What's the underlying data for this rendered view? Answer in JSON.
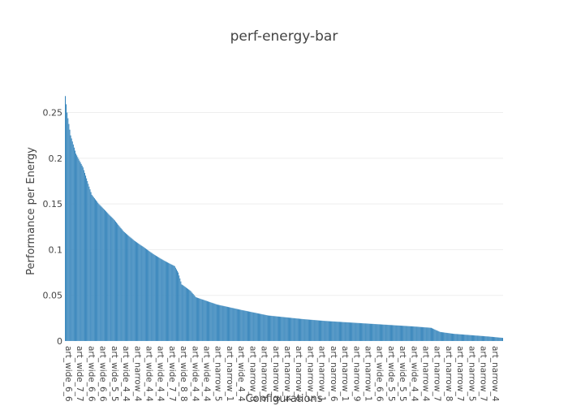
{
  "chart_data": {
    "type": "bar",
    "title": "perf-energy-bar",
    "xlabel": "Configurations",
    "ylabel": "Performance per Energy",
    "ylim": [
      0,
      0.27
    ],
    "yticks": [
      0,
      0.05,
      0.1,
      0.15,
      0.2,
      0.25
    ],
    "ytick_labels": [
      "0",
      "0.05",
      "0.1",
      "0.15",
      "0.2",
      "0.25"
    ],
    "grid": true,
    "bar_color": "#1f77b4",
    "series_profile": [
      [
        0,
        0.268
      ],
      [
        2,
        0.25
      ],
      [
        6,
        0.225
      ],
      [
        12,
        0.205
      ],
      [
        20,
        0.19
      ],
      [
        30,
        0.16
      ],
      [
        38,
        0.15
      ],
      [
        46,
        0.142
      ],
      [
        56,
        0.132
      ],
      [
        66,
        0.12
      ],
      [
        78,
        0.11
      ],
      [
        90,
        0.102
      ],
      [
        100,
        0.095
      ],
      [
        112,
        0.088
      ],
      [
        124,
        0.082
      ],
      [
        128,
        0.075
      ],
      [
        132,
        0.062
      ],
      [
        142,
        0.055
      ],
      [
        148,
        0.048
      ],
      [
        160,
        0.044
      ],
      [
        172,
        0.04
      ],
      [
        186,
        0.037
      ],
      [
        200,
        0.034
      ],
      [
        215,
        0.031
      ],
      [
        230,
        0.028
      ],
      [
        250,
        0.026
      ],
      [
        270,
        0.024
      ],
      [
        295,
        0.022
      ],
      [
        320,
        0.0205
      ],
      [
        345,
        0.019
      ],
      [
        370,
        0.0175
      ],
      [
        395,
        0.016
      ],
      [
        415,
        0.0145
      ],
      [
        425,
        0.01
      ],
      [
        440,
        0.008
      ],
      [
        460,
        0.0065
      ],
      [
        480,
        0.005
      ],
      [
        496,
        0.0035
      ]
    ],
    "categories_visible": [
      "art_wide_6_6",
      "art_wide_7_7",
      "art_wide_6_6",
      "art_wide_6_6",
      "art_wide_5_5",
      "art_wide_4_4",
      "art_narrow_4",
      "art_wide_4_4",
      "art_wide_4_4",
      "art_wide_7_7",
      "art_wide_8_8",
      "art_wide_4_4",
      "art_wide_4_4",
      "art_narrow_5",
      "art_narrow_1",
      "art_wide_4_4",
      "art_narrow_8",
      "art_narrow_6",
      "art_narrow_8",
      "art_narrow_4",
      "art_narrow_8",
      "art_narrow_5",
      "art_narrow_1",
      "art_narrow_6",
      "art_narrow_1",
      "art_narrow_9",
      "art_narrow_1",
      "art_wide_6_6",
      "art_wide_5_5",
      "art_wide_5_5",
      "art_wide_4_4",
      "art_narrow_4",
      "art_narrow_7",
      "art_narrow_8",
      "art_narrow_7",
      "art_narrow_5",
      "art_narrow_7",
      "art_narrow_4"
    ]
  }
}
